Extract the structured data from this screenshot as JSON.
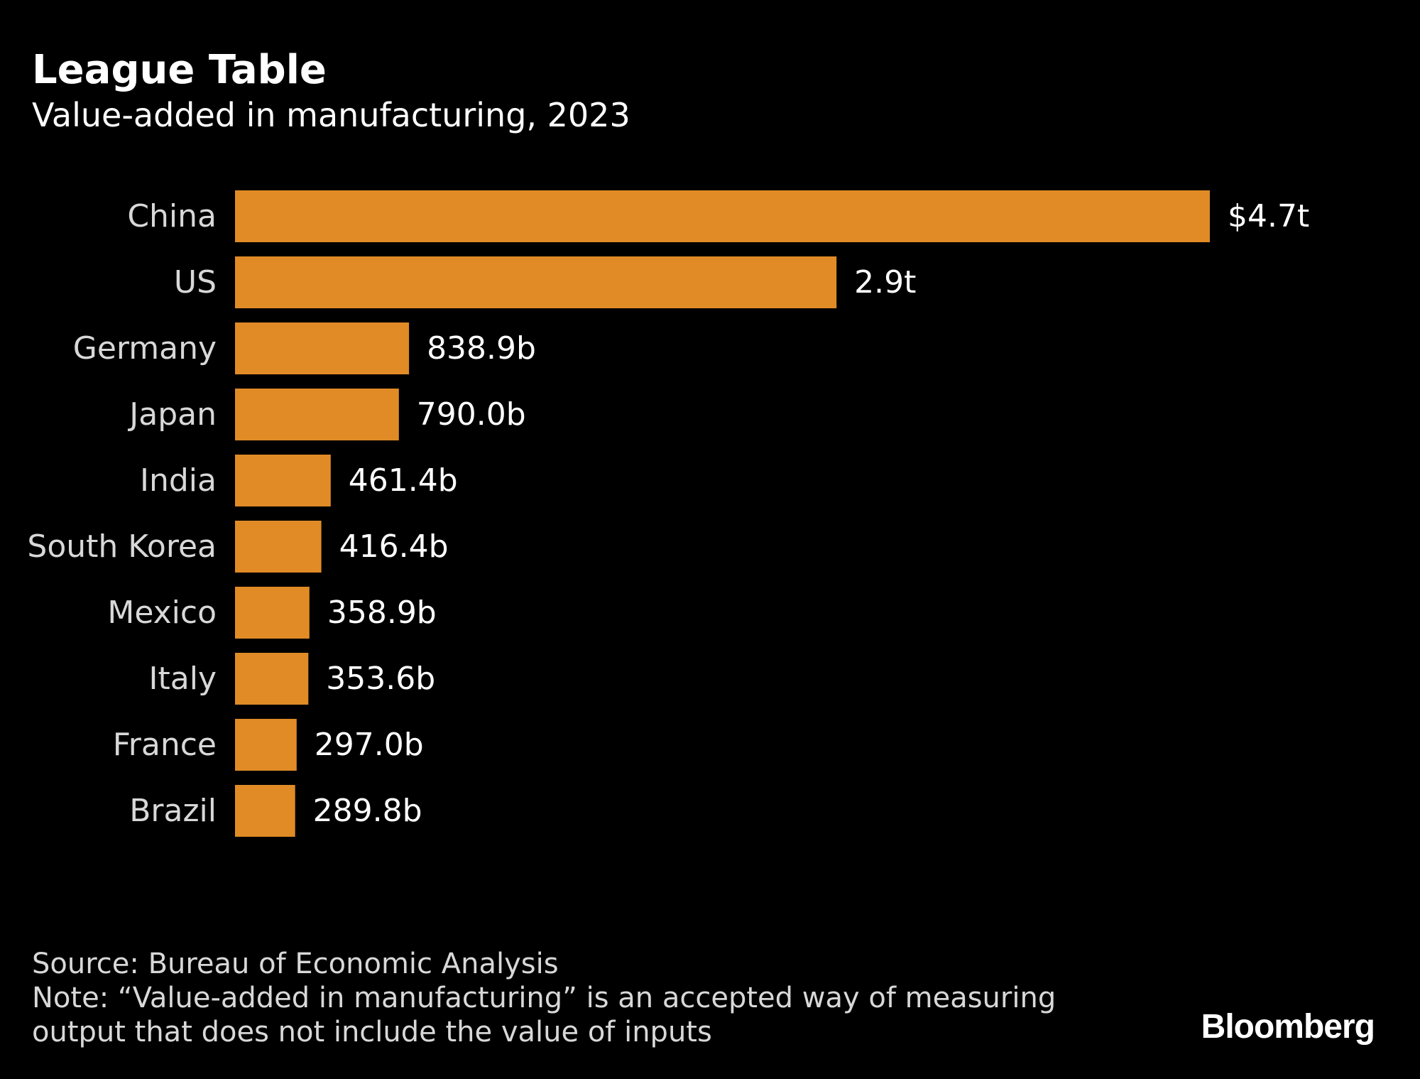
{
  "header": {
    "title": "League Table",
    "subtitle": "Value-added in manufacturing, 2023"
  },
  "chart_data": {
    "type": "bar",
    "orientation": "horizontal",
    "title": "League Table",
    "subtitle": "Value-added in manufacturing, 2023",
    "xlabel": "",
    "ylabel": "",
    "categories": [
      "China",
      "US",
      "Germany",
      "Japan",
      "India",
      "South Korea",
      "Mexico",
      "Italy",
      "France",
      "Brazil"
    ],
    "values": [
      4700,
      2900,
      838.9,
      790.0,
      461.4,
      416.4,
      358.9,
      353.6,
      297.0,
      289.8
    ],
    "value_unit": "billion USD",
    "data_labels": [
      "$4.7t",
      "2.9t",
      "838.9b",
      "790.0b",
      "461.4b",
      "416.4b",
      "358.9b",
      "353.6b",
      "297.0b",
      "289.8b"
    ],
    "xlim": [
      0,
      4700
    ],
    "grid": false,
    "legend": "none",
    "bar_color": "#e08b26"
  },
  "footer": {
    "source": "Source: Bureau of Economic Analysis",
    "note_line1": "Note: “Value-added in manufacturing” is an accepted way of measuring",
    "note_line2": "output that does not include the value of inputs"
  },
  "branding": {
    "logo_text": "Bloomberg"
  },
  "colors": {
    "background": "#000000",
    "bar": "#e08b26",
    "text": "#ffffff"
  }
}
